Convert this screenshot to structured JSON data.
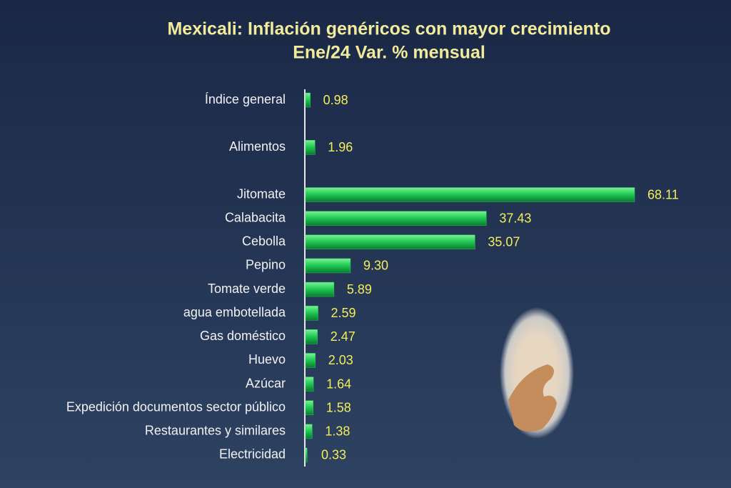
{
  "chart_data": {
    "type": "bar",
    "orientation": "horizontal",
    "title": "Mexicali: Inflación genéricos con mayor crecimiento",
    "subtitle": "Ene/24 Var. % mensual",
    "categories": [
      "Índice general",
      null,
      "Alimentos",
      null,
      "Jitomate",
      "Calabacita",
      "Cebolla",
      "Pepino",
      "Tomate verde",
      "agua embotellada",
      "Gas doméstico",
      "Huevo",
      "Azúcar",
      "Expedición documentos sector público",
      "Restaurantes y similares",
      "Electricidad"
    ],
    "values": [
      0.98,
      null,
      1.96,
      null,
      68.11,
      37.43,
      35.07,
      9.3,
      5.89,
      2.59,
      2.47,
      2.03,
      1.64,
      1.58,
      1.38,
      0.33
    ],
    "value_labels": [
      "0.98",
      null,
      "1.96",
      null,
      "68.11",
      "37.43",
      "35.07",
      "9.30",
      "5.89",
      "2.59",
      "2.47",
      "2.03",
      "1.64",
      "1.58",
      "1.38",
      "0.33"
    ],
    "color": "#22cc55"
  }
}
